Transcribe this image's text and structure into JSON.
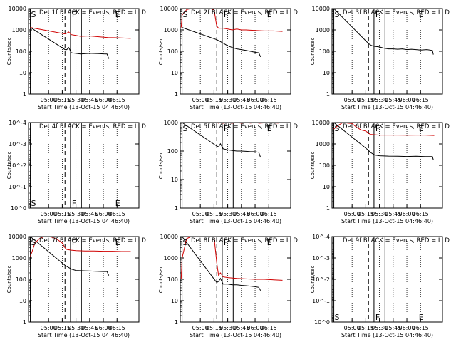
{
  "colors": {
    "events": "#000000",
    "lld": "#d00000",
    "axis": "#000000"
  },
  "xaxis": {
    "label": "Start Time (13-Oct-15 04:46:40)",
    "tick_labels": [
      "05:00",
      "05:15",
      "05:30",
      "05:45",
      "06:00",
      "06:15"
    ],
    "tick_minutes": [
      0,
      15,
      30,
      45,
      60,
      75
    ],
    "xlim": [
      -22,
      99
    ]
  },
  "ylabel": "Counts/sec",
  "ylim": [
    1,
    10000
  ],
  "marker_labels": {
    "s": "S",
    "f": "F",
    "e": "E"
  },
  "chart_data": [
    {
      "type": "line",
      "title": "Det 1f BLACK = Events, RED = LLD",
      "ylim": [
        1,
        10000
      ],
      "y_tick_labels": [
        "1",
        "10",
        "100",
        "1000",
        "10000"
      ],
      "markers": {
        "s": -20,
        "f": 24,
        "e": 73
      },
      "series": [
        {
          "name": "Events",
          "color": "#000000",
          "x": [
            -20,
            18,
            20,
            22,
            25,
            30,
            35,
            45,
            55,
            60,
            64,
            66
          ],
          "y": [
            1300,
            120,
            120,
            150,
            85,
            80,
            75,
            80,
            78,
            76,
            75,
            45
          ]
        },
        {
          "name": "LLD",
          "color": "#d00000",
          "x": [
            -20,
            18,
            20,
            22,
            25,
            30,
            35,
            45,
            55,
            65,
            75,
            90
          ],
          "y": [
            1300,
            650,
            700,
            800,
            600,
            550,
            500,
            520,
            480,
            440,
            430,
            400
          ]
        }
      ]
    },
    {
      "type": "line",
      "title": "Det 2f BLACK = Events, RED = LLD",
      "ylim": [
        1,
        10000
      ],
      "y_tick_labels": [
        "1",
        "10",
        "100",
        "1000",
        "10000"
      ],
      "markers": {
        "s": -20,
        "f": 24,
        "e": 73
      },
      "series": [
        {
          "name": "Events",
          "color": "#000000",
          "x": [
            -20,
            18,
            21,
            25,
            30,
            35,
            40,
            45,
            50,
            55,
            60,
            64,
            66
          ],
          "y": [
            1300,
            350,
            300,
            240,
            180,
            150,
            130,
            120,
            110,
            100,
            90,
            85,
            55
          ]
        },
        {
          "name": "LLD",
          "color": "#d00000",
          "x": [
            -21,
            -20,
            -15,
            -10,
            0,
            10,
            15,
            18,
            20,
            25,
            30,
            35,
            40,
            45,
            50,
            60,
            70,
            80,
            90
          ],
          "y": [
            1300,
            5000,
            9000,
            10000,
            10000,
            10000,
            9000,
            1500,
            1200,
            1200,
            1100,
            1000,
            1100,
            1000,
            1000,
            950,
            900,
            900,
            850
          ]
        }
      ]
    },
    {
      "type": "line",
      "title": "Det 3f BLACK = Events, RED = LLD",
      "ylim": [
        1,
        10000
      ],
      "y_tick_labels": [
        "1",
        "10",
        "100",
        "1000",
        "10000"
      ],
      "markers": {
        "s": -20,
        "f": 24,
        "e": 73
      },
      "series": [
        {
          "name": "Events",
          "color": "#000000",
          "x": [
            -20,
            18,
            20,
            22,
            25,
            30,
            35,
            40,
            45,
            50,
            55,
            60,
            65,
            70,
            75,
            82,
            88,
            89
          ],
          "y": [
            10000,
            230,
            200,
            180,
            170,
            160,
            140,
            130,
            130,
            125,
            130,
            120,
            125,
            120,
            115,
            120,
            110,
            70
          ]
        }
      ]
    },
    {
      "type": "line",
      "title": "Det 4f BLACK = Events, RED = LLD",
      "ylim": [
        1,
        0.0001
      ],
      "y_tick_labels": [
        "10^0",
        "10^-1",
        "10^-2",
        "10^-3",
        "10^-4"
      ],
      "markers": {
        "s": -20,
        "f": 24,
        "e": 73
      },
      "series": []
    },
    {
      "type": "line",
      "title": "Det 5f BLACK = Events, RED = LLD",
      "ylim": [
        1,
        1000
      ],
      "y_tick_labels": [
        "1",
        "10",
        "100",
        "1000"
      ],
      "markers": {
        "s": -20,
        "f": 24,
        "e": 73
      },
      "series": [
        {
          "name": "Events",
          "color": "#000000",
          "x": [
            -20,
            18,
            20,
            22,
            25,
            30,
            35,
            40,
            45,
            50,
            55,
            60,
            64,
            66
          ],
          "y": [
            1000,
            150,
            140,
            180,
            120,
            110,
            105,
            100,
            100,
            98,
            95,
            95,
            90,
            60
          ]
        },
        {
          "name": "LLD",
          "color": "#d00000",
          "x": [
            -20,
            18,
            20,
            22,
            25,
            30,
            35,
            40,
            45,
            50,
            55,
            60,
            65,
            75,
            85,
            90
          ],
          "y": [
            1000,
            1000,
            950,
            1000,
            950,
            1000,
            950,
            1000,
            950,
            1000,
            960,
            1000,
            950,
            1000,
            960,
            1000
          ]
        }
      ]
    },
    {
      "type": "line",
      "title": "Det 6f BLACK = Events, RED = LLD",
      "ylim": [
        1,
        10000
      ],
      "y_tick_labels": [
        "1",
        "10",
        "100",
        "1000",
        "10000"
      ],
      "markers": {
        "s": -20,
        "f": 24,
        "e": 73
      },
      "series": [
        {
          "name": "Events",
          "color": "#000000",
          "x": [
            -20,
            18,
            20,
            25,
            30,
            40,
            50,
            60,
            70,
            80,
            88,
            89
          ],
          "y": [
            10000,
            500,
            400,
            300,
            280,
            270,
            265,
            260,
            265,
            255,
            255,
            180
          ]
        },
        {
          "name": "LLD",
          "color": "#d00000",
          "x": [
            -20,
            -15,
            -10,
            -5,
            0,
            5,
            10,
            15,
            18,
            20,
            25,
            30,
            40,
            50,
            60,
            70,
            80,
            90
          ],
          "y": [
            5000,
            7500,
            10000,
            9500,
            9000,
            6000,
            4500,
            4000,
            3200,
            2800,
            2700,
            2600,
            2600,
            2600,
            2550,
            2600,
            2600,
            2500
          ]
        }
      ]
    },
    {
      "type": "line",
      "title": "Det 7f BLACK = Events, RED = LLD",
      "ylim": [
        1,
        10000
      ],
      "y_tick_labels": [
        "1",
        "10",
        "100",
        "1000",
        "10000"
      ],
      "markers": {
        "s": -20,
        "f": 24,
        "e": 73
      },
      "series": [
        {
          "name": "Events",
          "color": "#000000",
          "x": [
            -20,
            18,
            20,
            25,
            30,
            40,
            50,
            60,
            64,
            66
          ],
          "y": [
            10000,
            450,
            400,
            300,
            260,
            250,
            240,
            230,
            230,
            150
          ]
        },
        {
          "name": "LLD",
          "color": "#d00000",
          "x": [
            -20,
            -18,
            -15,
            -10,
            -5,
            0,
            5,
            10,
            15,
            18,
            20,
            25,
            30,
            40,
            50,
            60,
            70,
            80,
            90
          ],
          "y": [
            1200,
            2000,
            5000,
            8000,
            10000,
            10000,
            9000,
            7000,
            5000,
            3000,
            2500,
            2300,
            2200,
            2100,
            2100,
            2050,
            2050,
            2000,
            2000
          ]
        }
      ]
    },
    {
      "type": "line",
      "title": "Det 8f BLACK = Events, RED = LLD",
      "ylim": [
        1,
        10000
      ],
      "y_tick_labels": [
        "1",
        "10",
        "100",
        "1000",
        "10000"
      ],
      "markers": {
        "s": -20,
        "f": 24,
        "e": 73
      },
      "series": [
        {
          "name": "Events",
          "color": "#000000",
          "x": [
            -20,
            18,
            20,
            22,
            25,
            30,
            35,
            40,
            45,
            50,
            55,
            60,
            64,
            66
          ],
          "y": [
            10000,
            70,
            80,
            110,
            60,
            60,
            55,
            55,
            52,
            50,
            48,
            45,
            42,
            30
          ]
        },
        {
          "name": "LLD",
          "color": "#d00000",
          "x": [
            -21,
            -20,
            -15,
            -10,
            0,
            10,
            15,
            18,
            20,
            22,
            25,
            30,
            40,
            50,
            60,
            70,
            80,
            90
          ],
          "y": [
            100,
            1000,
            8000,
            10000,
            10000,
            10000,
            10000,
            600,
            150,
            200,
            130,
            120,
            110,
            105,
            100,
            100,
            95,
            90
          ]
        }
      ]
    },
    {
      "type": "line",
      "title": "Det 9f BLACK = Events, RED = LLD",
      "ylim": [
        1,
        0.0001
      ],
      "y_tick_labels": [
        "10^0",
        "10^-1",
        "10^-2",
        "10^-3",
        "10^-4"
      ],
      "markers": {
        "s": -20,
        "f": 24,
        "e": 73
      },
      "series": []
    }
  ]
}
